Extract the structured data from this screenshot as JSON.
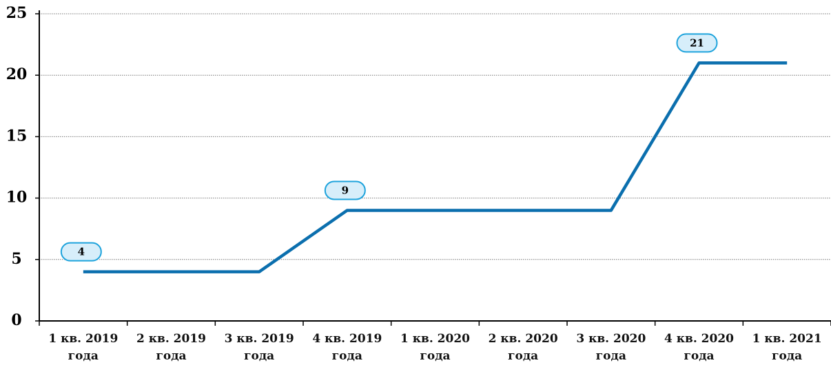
{
  "chart_data": {
    "type": "line",
    "categories": [
      "1 кв. 2019 года",
      "2 кв. 2019 года",
      "3 кв. 2019 года",
      "4 кв. 2019 года",
      "1 кв. 2020 года",
      "2 кв. 2020 года",
      "3 кв. 2020 года",
      "4 кв. 2020 года",
      "1 кв. 2021 года"
    ],
    "series": [
      {
        "color": "#0b6fae",
        "values": [
          4,
          4,
          4,
          9,
          9,
          9,
          9,
          21,
          21
        ],
        "value_labels": [
          "4",
          null,
          null,
          "9",
          null,
          null,
          null,
          "21",
          null
        ]
      }
    ],
    "ylim": [
      0,
      25
    ],
    "yticks": [
      0,
      5,
      10,
      15,
      20,
      25
    ],
    "grid": true
  }
}
